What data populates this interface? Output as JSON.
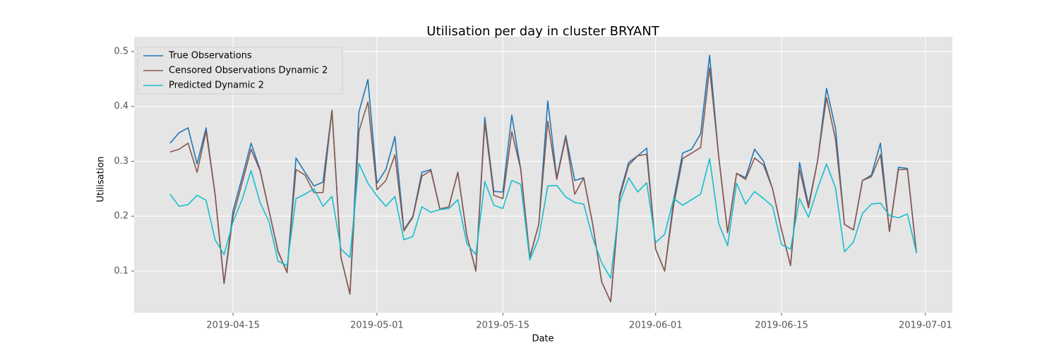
{
  "chart_data": {
    "type": "line",
    "title": "Utilisation per day in cluster BRYANT",
    "xlabel": "Date",
    "ylabel": "Utilisation",
    "x": [
      "2019-04-08",
      "2019-04-09",
      "2019-04-10",
      "2019-04-11",
      "2019-04-12",
      "2019-04-13",
      "2019-04-14",
      "2019-04-15",
      "2019-04-16",
      "2019-04-17",
      "2019-04-18",
      "2019-04-19",
      "2019-04-20",
      "2019-04-21",
      "2019-04-22",
      "2019-04-23",
      "2019-04-24",
      "2019-04-25",
      "2019-04-26",
      "2019-04-27",
      "2019-04-28",
      "2019-04-29",
      "2019-04-30",
      "2019-05-01",
      "2019-05-02",
      "2019-05-03",
      "2019-05-04",
      "2019-05-05",
      "2019-05-06",
      "2019-05-07",
      "2019-05-08",
      "2019-05-09",
      "2019-05-10",
      "2019-05-11",
      "2019-05-12",
      "2019-05-13",
      "2019-05-14",
      "2019-05-15",
      "2019-05-16",
      "2019-05-17",
      "2019-05-18",
      "2019-05-19",
      "2019-05-20",
      "2019-05-21",
      "2019-05-22",
      "2019-05-23",
      "2019-05-24",
      "2019-05-25",
      "2019-05-26",
      "2019-05-27",
      "2019-05-28",
      "2019-05-29",
      "2019-05-30",
      "2019-05-31",
      "2019-06-01",
      "2019-06-02",
      "2019-06-03",
      "2019-06-04",
      "2019-06-05",
      "2019-06-06",
      "2019-06-07",
      "2019-06-08",
      "2019-06-09",
      "2019-06-10",
      "2019-06-11",
      "2019-06-12",
      "2019-06-13",
      "2019-06-14",
      "2019-06-15",
      "2019-06-16",
      "2019-06-17",
      "2019-06-18",
      "2019-06-19",
      "2019-06-20",
      "2019-06-21",
      "2019-06-22",
      "2019-06-23",
      "2019-06-24",
      "2019-06-25",
      "2019-06-26",
      "2019-06-27",
      "2019-06-28",
      "2019-06-29",
      "2019-06-30"
    ],
    "series": [
      {
        "name": "True Observations",
        "color": "#1f77b4",
        "values": [
          0.333,
          0.352,
          0.361,
          0.295,
          0.361,
          0.24,
          0.078,
          0.21,
          0.27,
          0.333,
          0.285,
          0.21,
          0.135,
          0.098,
          0.306,
          0.28,
          0.255,
          0.262,
          0.393,
          0.125,
          0.058,
          0.39,
          0.449,
          0.26,
          0.285,
          0.345,
          0.175,
          0.2,
          0.28,
          0.285,
          0.213,
          0.217,
          0.28,
          0.165,
          0.1,
          0.38,
          0.245,
          0.244,
          0.384,
          0.285,
          0.125,
          0.185,
          0.41,
          0.27,
          0.347,
          0.265,
          0.27,
          0.185,
          0.08,
          0.044,
          0.24,
          0.298,
          0.31,
          0.324,
          0.14,
          0.1,
          0.23,
          0.315,
          0.322,
          0.35,
          0.493,
          0.31,
          0.17,
          0.278,
          0.27,
          0.322,
          0.3,
          0.25,
          0.175,
          0.11,
          0.298,
          0.22,
          0.3,
          0.433,
          0.36,
          0.185,
          0.175,
          0.265,
          0.275,
          0.333,
          0.172,
          0.289,
          0.287,
          0.133
        ]
      },
      {
        "name": "Censored Observations Dynamic 2",
        "color": "#8c564b",
        "values": [
          0.317,
          0.322,
          0.333,
          0.28,
          0.355,
          0.24,
          0.077,
          0.2,
          0.26,
          0.322,
          0.283,
          0.21,
          0.137,
          0.097,
          0.285,
          0.275,
          0.243,
          0.243,
          0.393,
          0.125,
          0.058,
          0.355,
          0.408,
          0.248,
          0.265,
          0.312,
          0.173,
          0.198,
          0.273,
          0.283,
          0.213,
          0.217,
          0.28,
          0.165,
          0.1,
          0.37,
          0.238,
          0.232,
          0.354,
          0.285,
          0.125,
          0.185,
          0.373,
          0.267,
          0.343,
          0.24,
          0.27,
          0.185,
          0.08,
          0.044,
          0.235,
          0.293,
          0.31,
          0.313,
          0.14,
          0.1,
          0.22,
          0.305,
          0.315,
          0.325,
          0.47,
          0.31,
          0.17,
          0.278,
          0.267,
          0.306,
          0.293,
          0.25,
          0.175,
          0.11,
          0.285,
          0.215,
          0.3,
          0.416,
          0.34,
          0.185,
          0.175,
          0.265,
          0.272,
          0.312,
          0.172,
          0.285,
          0.285,
          0.133
        ]
      },
      {
        "name": "Predicted Dynamic 2",
        "color": "#17becf",
        "values": [
          0.24,
          0.218,
          0.221,
          0.238,
          0.229,
          0.157,
          0.13,
          0.19,
          0.23,
          0.283,
          0.225,
          0.19,
          0.118,
          0.11,
          0.232,
          0.24,
          0.25,
          0.218,
          0.236,
          0.14,
          0.125,
          0.296,
          0.26,
          0.237,
          0.218,
          0.236,
          0.157,
          0.163,
          0.217,
          0.207,
          0.212,
          0.214,
          0.23,
          0.15,
          0.13,
          0.263,
          0.22,
          0.214,
          0.265,
          0.258,
          0.12,
          0.16,
          0.255,
          0.256,
          0.235,
          0.225,
          0.222,
          0.16,
          0.115,
          0.087,
          0.225,
          0.27,
          0.244,
          0.261,
          0.152,
          0.167,
          0.232,
          0.22,
          0.23,
          0.24,
          0.305,
          0.187,
          0.146,
          0.26,
          0.222,
          0.245,
          0.232,
          0.218,
          0.148,
          0.14,
          0.232,
          0.198,
          0.25,
          0.295,
          0.252,
          0.135,
          0.153,
          0.205,
          0.222,
          0.224,
          0.201,
          0.197,
          0.204,
          0.133
        ]
      }
    ],
    "xlim": [
      "2019-04-04",
      "2019-07-04"
    ],
    "xticks": [
      "2019-04-15",
      "2019-05-01",
      "2019-05-15",
      "2019-06-01",
      "2019-06-15",
      "2019-07-01"
    ],
    "ylim": [
      0.024,
      0.527
    ],
    "yticks": [
      0.1,
      0.2,
      0.3,
      0.4,
      0.5
    ],
    "grid": true,
    "legend": "upper left"
  }
}
